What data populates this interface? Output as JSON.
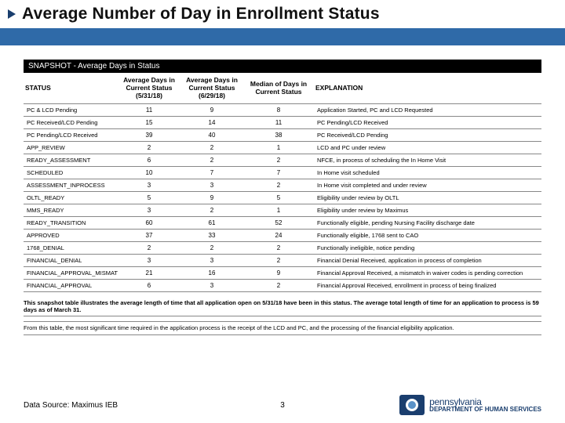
{
  "title": "Average Number of Day in Enrollment Status",
  "snapshot_header": "SNAPSHOT - Average Days in Status",
  "colors": {
    "title_arrow": "#1a3e6e",
    "band": "#2f6aa8",
    "header_bg": "#000000",
    "header_fg": "#ffffff",
    "border": "#888888",
    "logo_primary": "#1a3e6e"
  },
  "table": {
    "columns": [
      "STATUS",
      "Average Days in Current Status (5/31/18)",
      "Average Days in Current Status (6/29/18)",
      "Median of Days in Current Status",
      "EXPLANATION"
    ],
    "rows": [
      [
        "PC & LCD Pending",
        "11",
        "9",
        "8",
        "Application Started, PC and LCD Requested"
      ],
      [
        "PC Received/LCD Pending",
        "15",
        "14",
        "11",
        "PC Pending/LCD Received"
      ],
      [
        "PC Pending/LCD Received",
        "39",
        "40",
        "38",
        "PC Received/LCD Pending"
      ],
      [
        "APP_REVIEW",
        "2",
        "2",
        "1",
        "LCD and PC under review"
      ],
      [
        "READY_ASSESSMENT",
        "6",
        "2",
        "2",
        "NFCE, in process of scheduling the In Home Visit"
      ],
      [
        "SCHEDULED",
        "10",
        "7",
        "7",
        "In Home visit scheduled"
      ],
      [
        "ASSESSMENT_INPROCESS",
        "3",
        "3",
        "2",
        "In Home visit completed and under review"
      ],
      [
        "OLTL_READY",
        "5",
        "9",
        "5",
        "Eligibility under review by OLTL"
      ],
      [
        "MMS_READY",
        "3",
        "2",
        "1",
        "Eligibility under review by Maximus"
      ],
      [
        "READY_TRANSITION",
        "60",
        "61",
        "52",
        "Functionally eligible, pending Nursing Facility discharge date"
      ],
      [
        "APPROVED",
        "37",
        "33",
        "24",
        "Functionally eligible, 1768 sent to CAO"
      ],
      [
        "1768_DENIAL",
        "2",
        "2",
        "2",
        "Functionally ineligible, notice pending"
      ],
      [
        "FINANCIAL_DENIAL",
        "3",
        "3",
        "2",
        "Financial Denial Received, application in process of completion"
      ],
      [
        "FINANCIAL_APPROVAL_MISMATCH",
        "21",
        "16",
        "9",
        "Financial Approval Received, a mismatch in waiver codes is pending correction"
      ],
      [
        "FINANCIAL_APPROVAL",
        "6",
        "3",
        "2",
        "Financial Approval Received, enrollment in process of being finalized"
      ]
    ]
  },
  "notes": {
    "bold": "This snapshot table illustrates the average length of time that all application open on 5/31/18 have been in this status.  The average total length of time for an application to process is 59 days as of March 31.",
    "plain": "From this table, the most significant time required in the application process is the receipt of the LCD and PC, and the processing of the financial eligibility application."
  },
  "footer": {
    "source": "Data Source: Maximus IEB",
    "page": "3",
    "logo_l1": "pennsylvania",
    "logo_l2": "DEPARTMENT OF HUMAN SERVICES"
  }
}
